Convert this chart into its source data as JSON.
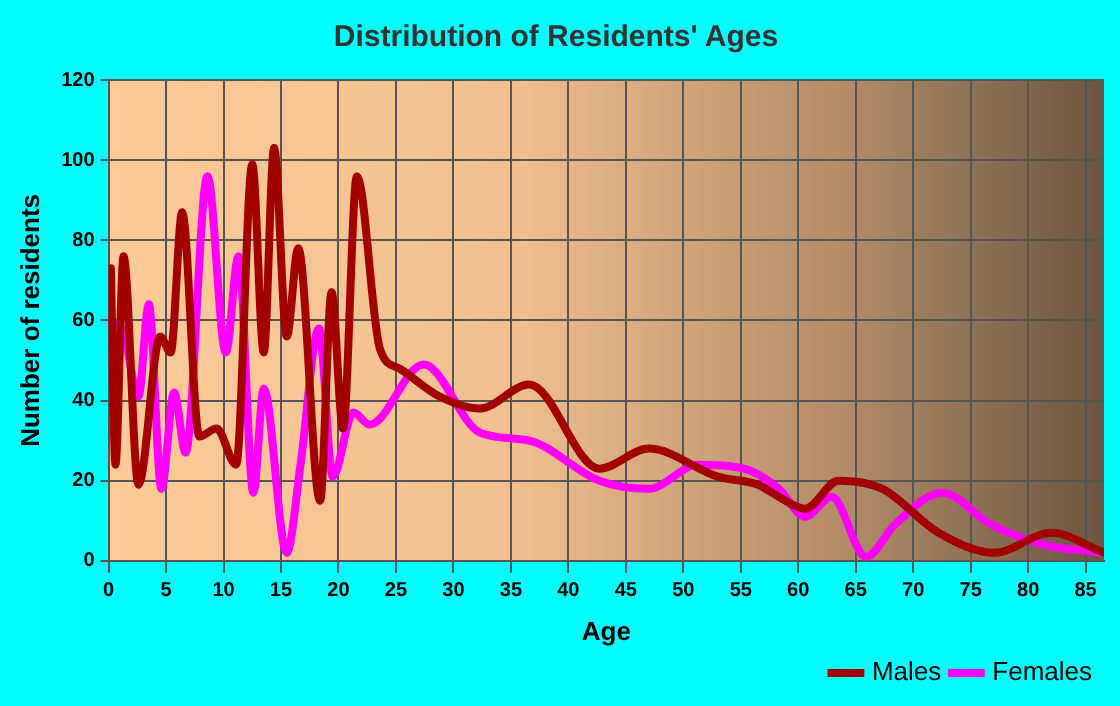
{
  "chart_data": {
    "type": "line",
    "title": "Distribution of Residents' Ages",
    "xlabel": "Age",
    "ylabel": "Number of residents",
    "xlim": [
      0,
      86.6
    ],
    "xticks": [
      0,
      5,
      10,
      15,
      20,
      25,
      30,
      35,
      40,
      45,
      50,
      55,
      60,
      65,
      70,
      75,
      80,
      85
    ],
    "ylim": [
      0,
      120
    ],
    "yticks": [
      0,
      20,
      40,
      60,
      80,
      100,
      120
    ],
    "grid": true,
    "legend": "bottom right",
    "marker": "none",
    "series": [
      {
        "name": "Males",
        "color": "#a30000",
        "x": [
          0.2,
          0.6,
          1.3,
          2.6,
          4.5,
          5.4,
          6.4,
          7.9,
          9.4,
          11.1,
          12.5,
          13.5,
          14.4,
          15.5,
          16.5,
          18.4,
          19.4,
          20.4,
          21.6,
          23.6,
          25.3,
          28.8,
          32.3,
          36.6,
          42.7,
          47,
          53,
          56.5,
          58.3,
          60.6,
          63.5,
          67.3,
          72.2,
          77.1,
          82,
          86.6
        ],
        "values": [
          73,
          24,
          76,
          19,
          56,
          52,
          87,
          31,
          33,
          24,
          99,
          52,
          103,
          56,
          78,
          15,
          67,
          33,
          96,
          53,
          48,
          41,
          38,
          44,
          23,
          28,
          21,
          19,
          16,
          13,
          20,
          18,
          7,
          2,
          7,
          2
        ]
      },
      {
        "name": "Females",
        "color": "#ff00ff",
        "x": [
          0,
          1.3,
          2.6,
          3.5,
          4.6,
          5.7,
          6.7,
          8.6,
          10.2,
          11.3,
          12.6,
          13.5,
          15.5,
          16.7,
          18.3,
          19.5,
          21.3,
          22.7,
          27.4,
          32.3,
          36.6,
          42.7,
          47,
          51.3,
          55.3,
          58.3,
          60.6,
          62.9,
          65.9,
          68.4,
          72.5,
          76.8,
          81.4,
          86.6
        ],
        "values": [
          60,
          57,
          41,
          64,
          18,
          42,
          27,
          96,
          52,
          76,
          17,
          43,
          2,
          24,
          58,
          21,
          37,
          34,
          49,
          32,
          30,
          20,
          18,
          24,
          23,
          18,
          11,
          16,
          1,
          9,
          17,
          9,
          4,
          2
        ]
      }
    ]
  }
}
